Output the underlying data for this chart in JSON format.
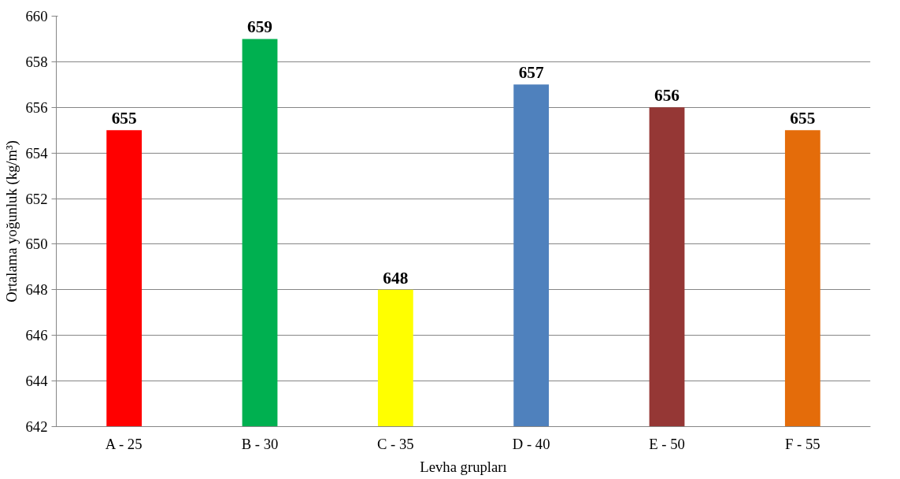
{
  "chart_data": {
    "type": "bar",
    "xlabel": "Levha grupları",
    "ylabel": "Ortalama yoğunluk (kg/m³)",
    "categories": [
      "A - 25",
      "B - 30",
      "C - 35",
      "D - 40",
      "E - 50",
      "F - 55"
    ],
    "values": [
      655,
      659,
      648,
      657,
      656,
      655
    ],
    "colors": [
      "#ff0000",
      "#00b050",
      "#ffff00",
      "#4f81bd",
      "#953735",
      "#e46c0a"
    ],
    "ylim": [
      642,
      660
    ],
    "yticks": [
      642,
      644,
      646,
      648,
      650,
      652,
      654,
      656,
      658,
      660
    ],
    "grid": "y",
    "data_labels": true
  }
}
